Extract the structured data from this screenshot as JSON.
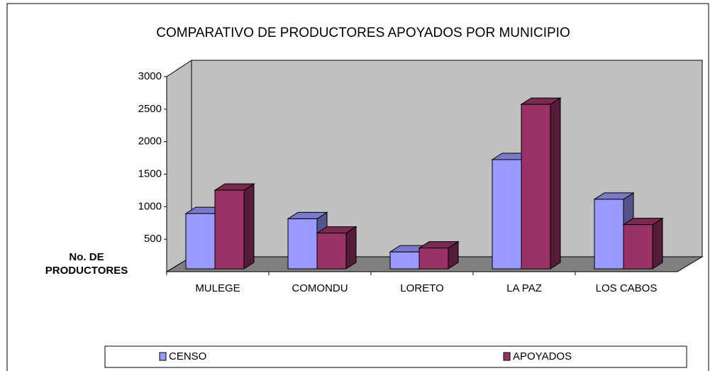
{
  "chart_data": {
    "type": "bar3d",
    "title": "COMPARATIVO DE PRODUCTORES APOYADOS POR MUNICIPIO",
    "ylabel": "No. DE PRODUCTORES",
    "categories": [
      "MULEGE",
      "COMONDU",
      "LORETO",
      "LA PAZ",
      "LOS CABOS"
    ],
    "series": [
      {
        "name": "CENSO",
        "color": "#9999ff",
        "values": [
          850,
          770,
          260,
          1680,
          1070
        ]
      },
      {
        "name": "APOYADOS",
        "color": "#993366",
        "values": [
          1210,
          550,
          320,
          2530,
          680
        ]
      }
    ],
    "ylim": [
      0,
      3000
    ],
    "yticks": [
      500,
      1000,
      1500,
      2000,
      2500,
      3000
    ],
    "legend": "bottom",
    "grid": false
  }
}
